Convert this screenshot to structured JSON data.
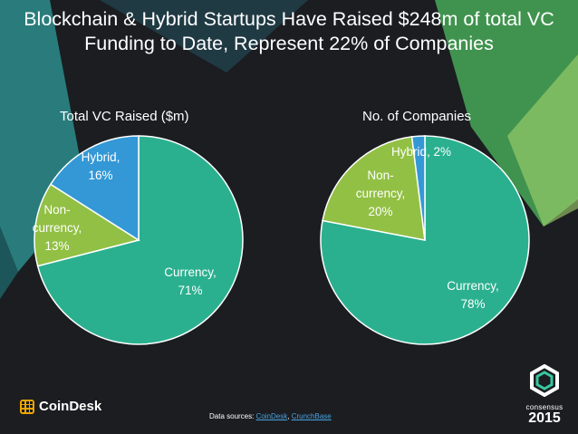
{
  "title": "Blockchain & Hybrid Startups Have Raised $248m of total VC Funding to Date, Represent 22% of Companies",
  "colors": {
    "background": "#1b1d21",
    "currency": "#2bb08f",
    "non_currency": "#92c044",
    "hybrid": "#3498d6",
    "accent_green": "#39c6a0"
  },
  "chart_data": [
    {
      "type": "pie",
      "title": "Total VC Raised ($m)",
      "slices": [
        {
          "name": "Currency",
          "value": 71,
          "label_line1": "Currency,",
          "label_line2": "71%"
        },
        {
          "name": "Non-currency",
          "value": 13,
          "label_line1": "Non-",
          "label_line2": "currency,",
          "label_line3": "13%"
        },
        {
          "name": "Hybrid",
          "value": 16,
          "label_line1": "Hybrid,",
          "label_line2": "16%"
        }
      ]
    },
    {
      "type": "pie",
      "title": "No. of Companies",
      "slices": [
        {
          "name": "Currency",
          "value": 78,
          "label_line1": "Currency,",
          "label_line2": "78%"
        },
        {
          "name": "Non-currency",
          "value": 20,
          "label_line1": "Non-",
          "label_line2": "currency,",
          "label_line3": "20%"
        },
        {
          "name": "Hybrid",
          "value": 2,
          "label_line1": "Hybrid, 2%"
        }
      ]
    }
  ],
  "footer": {
    "logo_text": "CoinDesk",
    "sources_prefix": "Data sources: ",
    "source_1": "CoinDesk",
    "sources_sep": ", ",
    "source_2": "CrunchBase",
    "event_word": "consensus",
    "event_year": "2015"
  }
}
